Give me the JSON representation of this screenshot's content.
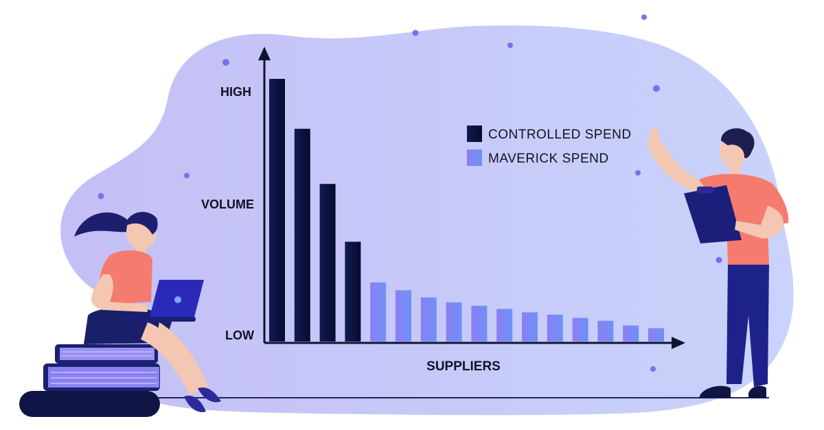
{
  "chart_data": {
    "type": "bar",
    "categories": [
      "",
      "",
      "",
      "",
      "",
      "",
      "",
      "",
      "",
      "",
      "",
      "",
      "",
      "",
      "",
      ""
    ],
    "series": [
      {
        "name": "CONTROLLED SPEND",
        "values": [
          100,
          81,
          60,
          38,
          null,
          null,
          null,
          null,
          null,
          null,
          null,
          null,
          null,
          null,
          null,
          null
        ]
      },
      {
        "name": "MAVERICK SPEND",
        "values": [
          null,
          null,
          null,
          null,
          22.5,
          19.5,
          16.8,
          14.9,
          13.6,
          12.4,
          11.1,
          10.2,
          9.0,
          7.9,
          6.1,
          5.1
        ]
      }
    ],
    "title": "",
    "xlabel": "SUPPLIERS",
    "ylabel": "VOLUME",
    "ytick_labels": {
      "high": "HIGH",
      "low": "LOW"
    },
    "ylim": [
      0,
      100
    ],
    "legend_position": "top-right",
    "grid": false
  },
  "colors": {
    "controlled": "#0c1240",
    "maverick": "#6f86f7",
    "blob": "#c8cbf8",
    "axis": "#0f1430",
    "dots": "#7b6ff0"
  },
  "icons": [
    "woman-with-laptop-illustration",
    "man-with-clipboard-illustration",
    "book-stack-icon"
  ]
}
